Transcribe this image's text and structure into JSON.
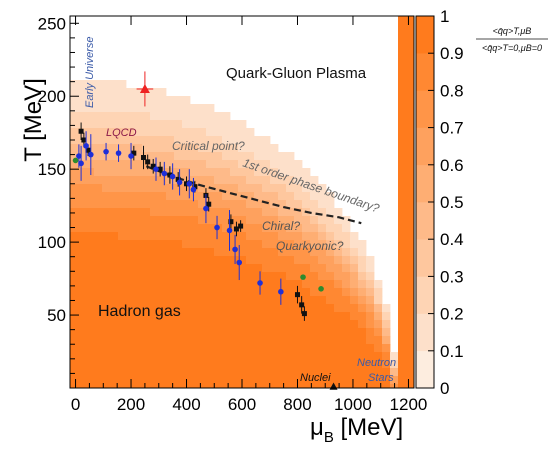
{
  "chart_data": {
    "type": "heatmap",
    "xlabel": "μB [MeV]",
    "xlabel_main": "μ",
    "xlabel_sub": "B",
    "xlabel_unit": " [MeV]",
    "ylabel": "T [MeV]",
    "xlim": [
      -20,
      1220
    ],
    "ylim": [
      0,
      255
    ],
    "x_ticks": [
      0,
      200,
      400,
      600,
      800,
      1000,
      1200
    ],
    "x_tick_labels": [
      "0",
      "200",
      "400",
      "600",
      "800",
      "1000",
      "1200"
    ],
    "y_ticks": [
      50,
      100,
      150,
      200,
      250
    ],
    "y_tick_labels": [
      "50",
      "100",
      "150",
      "200",
      "250"
    ],
    "colorbar": {
      "min": 0,
      "max": 1,
      "ticks": [
        0,
        0.1,
        0.2,
        0.3,
        0.4,
        0.5,
        0.6,
        0.7,
        0.8,
        0.9,
        1
      ],
      "tick_labels": [
        "0",
        "0.1",
        "0.2",
        "0.3",
        "0.4",
        "0.5",
        "0.6",
        "0.7",
        "0.8",
        "0.9",
        "1"
      ],
      "low_color": "#fdf3ea",
      "high_color": "#ff7512",
      "title_numerator": "<q̄q>T,μB",
      "title_denominator": "<q̄q>T=0,μB=0"
    },
    "transition_Tc": 158,
    "transition_muc": 1150,
    "annotations": {
      "qgp": "Quark-Gluon Plasma",
      "hadron": "Hadron gas",
      "early_universe": "Early Universe",
      "lqcd": "LQCD",
      "critical_point": "Critical point?",
      "phase_boundary": "1st order phase boundary?",
      "chiral": "Chiral?",
      "quarkyonic": "Quarkyonic?",
      "neutron": "Neutron",
      "stars": "Stars",
      "nuclei": "Nuclei"
    },
    "phase_boundary_line": [
      [
        255,
        152
      ],
      [
        350,
        145
      ],
      [
        450,
        139
      ],
      [
        550,
        134
      ],
      [
        650,
        129
      ],
      [
        750,
        124
      ],
      [
        850,
        120
      ],
      [
        950,
        117
      ],
      [
        1030,
        113
      ]
    ],
    "series": [
      {
        "marker": "square",
        "color": "#111111",
        "points": [
          {
            "x": 20,
            "y": 176,
            "yerr": 6
          },
          {
            "x": 30,
            "y": 170,
            "yerr": 5
          },
          {
            "x": 45,
            "y": 163,
            "yerr": 4
          },
          {
            "x": 210,
            "y": 161,
            "yerr": 5
          },
          {
            "x": 245,
            "y": 158,
            "yerr": 8
          },
          {
            "x": 260,
            "y": 155,
            "yerr": 5
          },
          {
            "x": 280,
            "y": 152,
            "yerr": 5
          },
          {
            "x": 305,
            "y": 150,
            "yerr": 5
          },
          {
            "x": 340,
            "y": 146,
            "yerr": 6
          },
          {
            "x": 370,
            "y": 143,
            "yerr": 5
          },
          {
            "x": 400,
            "y": 140,
            "yerr": 5
          },
          {
            "x": 430,
            "y": 138,
            "yerr": 4
          },
          {
            "x": 470,
            "y": 132,
            "yerr": 5
          },
          {
            "x": 480,
            "y": 126,
            "yerr": 5
          },
          {
            "x": 560,
            "y": 114,
            "yerr": 5
          },
          {
            "x": 580,
            "y": 109,
            "yerr": 5
          },
          {
            "x": 595,
            "y": 111,
            "yerr": 4
          },
          {
            "x": 800,
            "y": 64,
            "yerr": 6
          },
          {
            "x": 815,
            "y": 57,
            "yerr": 6
          },
          {
            "x": 825,
            "y": 51,
            "yerr": 5
          }
        ]
      },
      {
        "marker": "circle",
        "color": "#1f2fd8",
        "points": [
          {
            "x": 12,
            "y": 159,
            "yerr": 8
          },
          {
            "x": 20,
            "y": 154,
            "yerr": 12
          },
          {
            "x": 38,
            "y": 166,
            "yerr": 10
          },
          {
            "x": 55,
            "y": 160,
            "yerr": 14
          },
          {
            "x": 110,
            "y": 162,
            "yerr": 6
          },
          {
            "x": 155,
            "y": 161,
            "yerr": 6
          },
          {
            "x": 200,
            "y": 159,
            "yerr": 9
          },
          {
            "x": 290,
            "y": 150,
            "yerr": 8
          },
          {
            "x": 320,
            "y": 147,
            "yerr": 8
          },
          {
            "x": 350,
            "y": 145,
            "yerr": 9
          },
          {
            "x": 375,
            "y": 141,
            "yerr": 9
          },
          {
            "x": 410,
            "y": 140,
            "yerr": 10
          },
          {
            "x": 425,
            "y": 136,
            "yerr": 8
          },
          {
            "x": 470,
            "y": 123,
            "yerr": 10
          },
          {
            "x": 510,
            "y": 110,
            "yerr": 8
          },
          {
            "x": 555,
            "y": 108,
            "yerr": 14
          },
          {
            "x": 575,
            "y": 95,
            "yerr": 10
          },
          {
            "x": 590,
            "y": 86,
            "yerr": 12
          },
          {
            "x": 665,
            "y": 72,
            "yerr": 8
          },
          {
            "x": 740,
            "y": 66,
            "yerr": 9
          }
        ]
      },
      {
        "marker": "circle",
        "color": "#2e8b2e",
        "points": [
          {
            "x": 0,
            "y": 156,
            "yerr": 0
          },
          {
            "x": 820,
            "y": 76,
            "yerr": 0
          },
          {
            "x": 885,
            "y": 68,
            "yerr": 0
          }
        ]
      },
      {
        "marker": "triangle",
        "color": "#ee2222",
        "points": [
          {
            "x": 250,
            "y": 205,
            "yerr": 12,
            "xerr": 30
          }
        ]
      },
      {
        "marker": "triangle",
        "color": "#111111",
        "points": [
          {
            "x": 930,
            "y": 1,
            "yerr": 0
          }
        ]
      }
    ]
  }
}
